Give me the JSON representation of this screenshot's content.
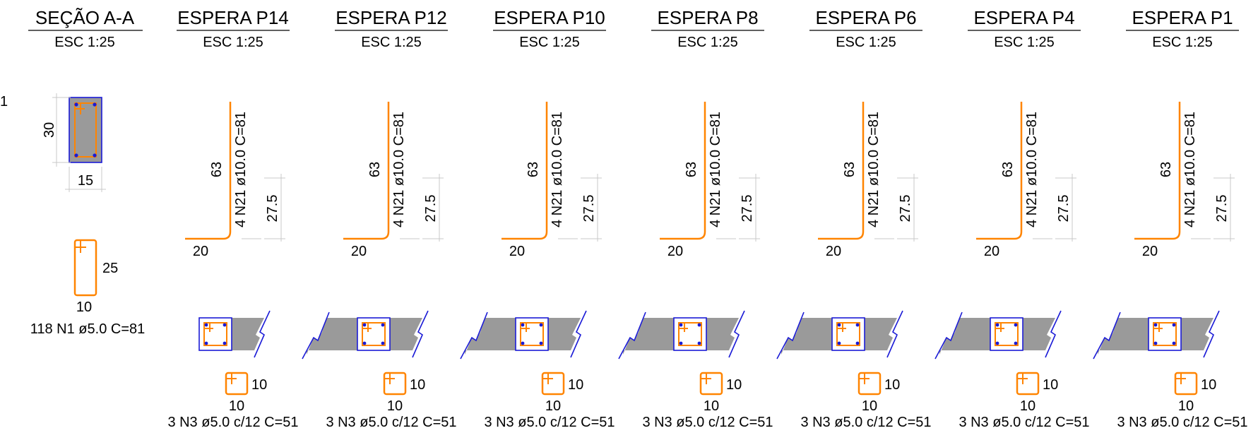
{
  "colors": {
    "rebar": "#ff8400",
    "outline": "#1a1ad6",
    "concrete": "#9a9a9a",
    "dimension": "#c8c8c8"
  },
  "row_marker": "1",
  "section": {
    "title": "SEÇÃO A-A",
    "scale": "ESC 1:25",
    "height_dim": "30",
    "width_dim": "15",
    "stirrup_height": "25",
    "stirrup_width": "10",
    "stirrup_label": "118 N1 ø5.0 C=81"
  },
  "columns": [
    {
      "title": "ESPERA P14",
      "scale": "ESC 1:25",
      "bar_length": "63",
      "bar_label": "4 N21 ø10.0 C=81",
      "embed_dim": "27.5",
      "hook_dim": "20",
      "stirrup_w": "10",
      "stirrup_h": "10",
      "stirrup_label": "3 N3 ø5.0 c/12 C=51"
    },
    {
      "title": "ESPERA P12",
      "scale": "ESC 1:25",
      "bar_length": "63",
      "bar_label": "4 N21 ø10.0 C=81",
      "embed_dim": "27.5",
      "hook_dim": "20",
      "stirrup_w": "10",
      "stirrup_h": "10",
      "stirrup_label": "3 N3 ø5.0 c/12 C=51"
    },
    {
      "title": "ESPERA P10",
      "scale": "ESC 1:25",
      "bar_length": "63",
      "bar_label": "4 N21 ø10.0 C=81",
      "embed_dim": "27.5",
      "hook_dim": "20",
      "stirrup_w": "10",
      "stirrup_h": "10",
      "stirrup_label": "3 N3 ø5.0 c/12 C=51"
    },
    {
      "title": "ESPERA P8",
      "scale": "ESC 1:25",
      "bar_length": "63",
      "bar_label": "4 N21 ø10.0 C=81",
      "embed_dim": "27.5",
      "hook_dim": "20",
      "stirrup_w": "10",
      "stirrup_h": "10",
      "stirrup_label": "3 N3 ø5.0 c/12 C=51"
    },
    {
      "title": "ESPERA P6",
      "scale": "ESC 1:25",
      "bar_length": "63",
      "bar_label": "4 N21 ø10.0 C=81",
      "embed_dim": "27.5",
      "hook_dim": "20",
      "stirrup_w": "10",
      "stirrup_h": "10",
      "stirrup_label": "3 N3 ø5.0 c/12 C=51"
    },
    {
      "title": "ESPERA P4",
      "scale": "ESC 1:25",
      "bar_length": "63",
      "bar_label": "4 N21 ø10.0 C=81",
      "embed_dim": "27.5",
      "hook_dim": "20",
      "stirrup_w": "10",
      "stirrup_h": "10",
      "stirrup_label": "3 N3 ø5.0 c/12 C=51"
    },
    {
      "title": "ESPERA P1",
      "scale": "ESC 1:25",
      "bar_length": "63",
      "bar_label": "4 N21 ø10.0 C=81",
      "embed_dim": "27.5",
      "hook_dim": "20",
      "stirrup_w": "10",
      "stirrup_h": "10",
      "stirrup_label": "3 N3 ø5.0 c/12 C=51"
    }
  ]
}
